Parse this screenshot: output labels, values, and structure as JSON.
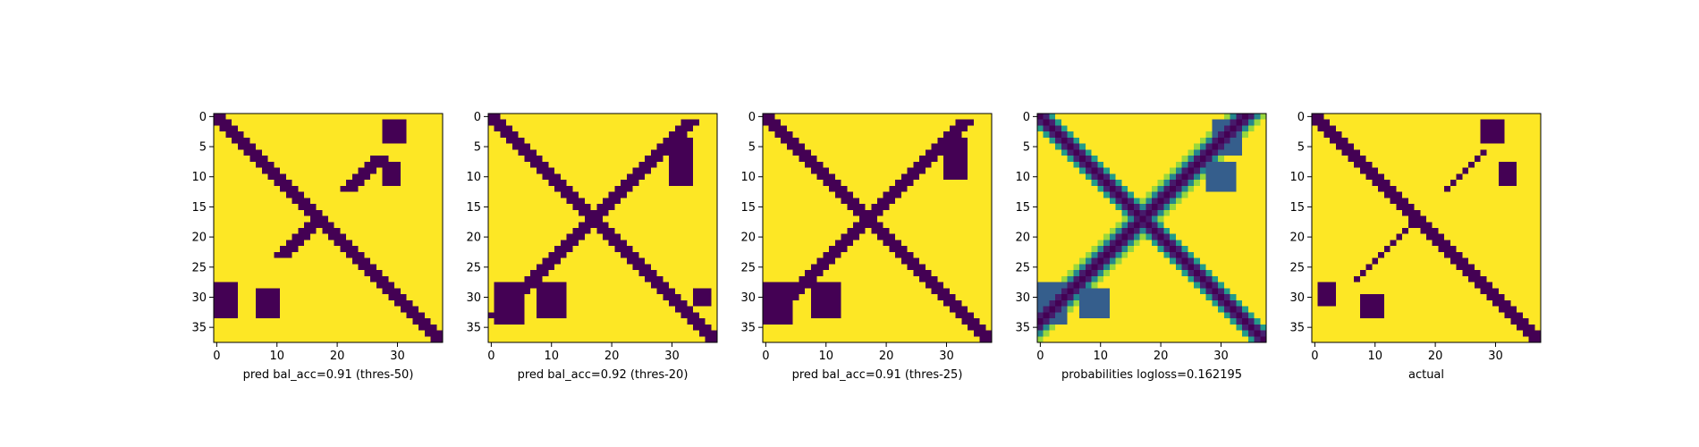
{
  "chart_data": [
    {
      "type": "heatmap",
      "xlabel": "pred bal_acc=0.91 (thres-50)",
      "xticks": [
        0,
        10,
        20,
        30
      ],
      "yticks": [
        0,
        5,
        10,
        15,
        20,
        25,
        30,
        35
      ],
      "xlim": [
        0,
        38
      ],
      "ylim": [
        0,
        38
      ],
      "colormap": "viridis-binary",
      "colors": {
        "low": "#440154",
        "high": "#fde725"
      },
      "matrix_size": 38,
      "low_value_regions": [
        {
          "desc": "main diagonal band",
          "from": [
            0,
            0
          ],
          "to": [
            37,
            37
          ],
          "width": 3
        },
        {
          "desc": "anti-diagonal band",
          "from": [
            30,
            0
          ],
          "to": [
            0,
            30
          ],
          "width": 2,
          "partial": true
        },
        {
          "desc": "blob",
          "rows": [
            1,
            4
          ],
          "cols": [
            27,
            31
          ]
        },
        {
          "desc": "blob",
          "rows": [
            8,
            11
          ],
          "cols": [
            27,
            30
          ]
        },
        {
          "desc": "blob",
          "rows": [
            28,
            33
          ],
          "cols": [
            0,
            3
          ]
        },
        {
          "desc": "blob",
          "rows": [
            29,
            33
          ],
          "cols": [
            6,
            10
          ]
        }
      ]
    },
    {
      "type": "heatmap",
      "xlabel": "pred bal_acc=0.92 (thres-20)",
      "xticks": [
        0,
        10,
        20,
        30
      ],
      "yticks": [
        0,
        5,
        10,
        15,
        20,
        25,
        30,
        35
      ],
      "xlim": [
        0,
        38
      ],
      "ylim": [
        0,
        38
      ],
      "colormap": "viridis-binary",
      "colors": {
        "low": "#440154",
        "high": "#fde725"
      },
      "matrix_size": 38
    },
    {
      "type": "heatmap",
      "xlabel": "pred bal_acc=0.91 (thres-25)",
      "xticks": [
        0,
        10,
        20,
        30
      ],
      "yticks": [
        0,
        5,
        10,
        15,
        20,
        25,
        30,
        35
      ],
      "xlim": [
        0,
        38
      ],
      "ylim": [
        0,
        38
      ],
      "colormap": "viridis-binary",
      "colors": {
        "low": "#440154",
        "high": "#fde725"
      },
      "matrix_size": 38
    },
    {
      "type": "heatmap",
      "xlabel": "probabilities logloss=0.162195",
      "xticks": [
        0,
        10,
        20,
        30
      ],
      "yticks": [
        0,
        5,
        10,
        15,
        20,
        25,
        30,
        35
      ],
      "xlim": [
        0,
        38
      ],
      "ylim": [
        0,
        38
      ],
      "colormap": "viridis",
      "colors": {
        "low": "#440154",
        "mid": "#21918c",
        "high": "#fde725"
      },
      "matrix_size": 38
    },
    {
      "type": "heatmap",
      "xlabel": "actual",
      "xticks": [
        0,
        10,
        20,
        30
      ],
      "yticks": [
        0,
        5,
        10,
        15,
        20,
        25,
        30,
        35
      ],
      "xlim": [
        0,
        38
      ],
      "ylim": [
        0,
        38
      ],
      "colormap": "viridis-binary",
      "colors": {
        "low": "#440154",
        "high": "#fde725"
      },
      "matrix_size": 38
    }
  ]
}
